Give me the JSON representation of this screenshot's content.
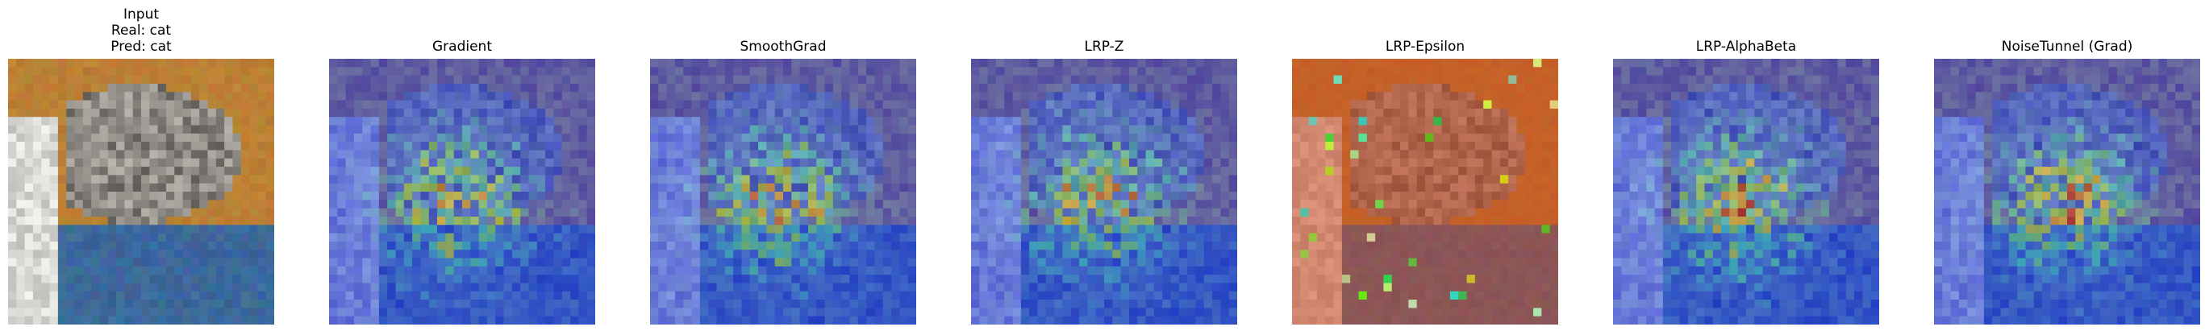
{
  "input": {
    "title_line1": "Input",
    "title_line2": "Real: cat",
    "title_line3": "Pred: cat"
  },
  "panels": [
    {
      "title": "Gradient",
      "overlay": "cool"
    },
    {
      "title": "SmoothGrad",
      "overlay": "cool"
    },
    {
      "title": "LRP-Z",
      "overlay": "cool"
    },
    {
      "title": "LRP-Epsilon",
      "overlay": "warm"
    },
    {
      "title": "LRP-AlphaBeta",
      "overlay": "cool"
    },
    {
      "title": "NoiseTunnel (Grad)",
      "overlay": "cool"
    }
  ],
  "colors": {
    "background": "#ffffff",
    "input_top": "#c58a2e",
    "input_bottom": "#315d8e",
    "cool_overlay": "#2330c8",
    "warm_overlay": "#d23b1c"
  }
}
